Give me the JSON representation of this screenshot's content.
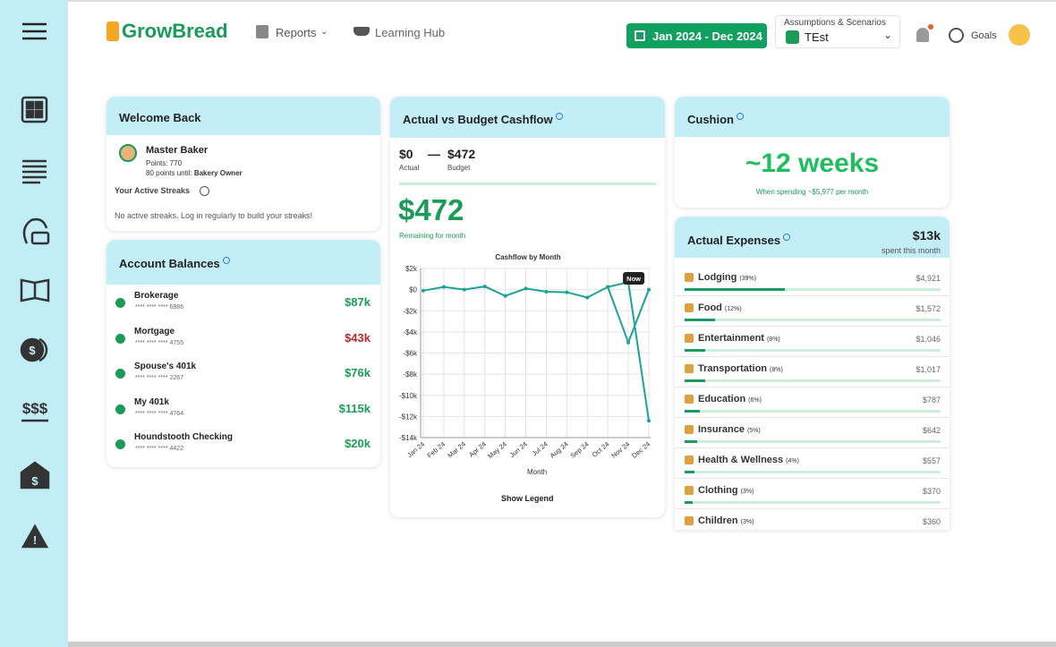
{
  "header": {
    "logo": "GrowBread",
    "nav": [
      "Reports",
      "Learning Hub"
    ],
    "date_range": "Jan 2024 - Dec 2024",
    "scenario_label": "Assumptions & Scenarios",
    "scenario": "TEst",
    "goals": "Goals"
  },
  "welcome": {
    "title": "Welcome Back",
    "name": "Master Baker",
    "points": "Points: 770",
    "next_level": "80 points until:",
    "next_level_name": "Bakery Owner",
    "streaks_title": "Your Active Streaks",
    "streaks_empty": "No active streaks. Log in regularly to build your streaks!"
  },
  "balances": {
    "title": "Account Balances",
    "accounts": [
      {
        "name": "Brokerage",
        "number": "**** **** **** 6886",
        "amount": "$87k",
        "color": "#1e9b55"
      },
      {
        "name": "Mortgage",
        "number": "**** **** **** 4755",
        "amount": "$43k",
        "color": "#b8292f"
      },
      {
        "name": "Spouse's 401k",
        "number": "**** **** **** 2267",
        "amount": "$76k",
        "color": "#1e9b55"
      },
      {
        "name": "My 401k",
        "number": "**** **** **** 4764",
        "amount": "$115k",
        "color": "#1e9b55"
      },
      {
        "name": "Houndstooth Checking",
        "number": "**** **** **** 4422",
        "amount": "$20k",
        "color": "#1e9b55"
      }
    ]
  },
  "cashflow": {
    "title": "Actual vs Budget Cashflow",
    "actual": "$0",
    "actual_label": "Actual",
    "budget": "$472",
    "budget_label": "Budget",
    "remaining": "$472",
    "remaining_label": "Remaining for month",
    "legend_toggle": "Show Legend",
    "chart": {
      "type": "line",
      "title": "Cashflow by Month",
      "x_label": "Month",
      "categories": [
        "Jan 24",
        "Feb 24",
        "Mar 24",
        "Apr 24",
        "May 24",
        "Jun 24",
        "Jul 24",
        "Aug 24",
        "Sep 24",
        "Oct 24",
        "Nov 24",
        "Dec 24"
      ],
      "series": [
        {
          "color": "#1ba39a",
          "values": [
            -100,
            250,
            0,
            300,
            -600,
            100,
            -200,
            -250,
            -750,
            250,
            700,
            -12400
          ]
        },
        {
          "color": "#1ba39a",
          "values": [
            null,
            null,
            null,
            null,
            null,
            null,
            null,
            null,
            null,
            250,
            -5000,
            0
          ]
        }
      ],
      "ylim": [
        -14000,
        2000
      ],
      "yticks": [
        {
          "value": 2000,
          "label": "$2k"
        },
        {
          "value": 0,
          "label": "$0"
        },
        {
          "value": -2000,
          "label": "-$2k"
        },
        {
          "value": -4000,
          "label": "-$4k"
        },
        {
          "value": -6000,
          "label": "-$6k"
        },
        {
          "value": -8000,
          "label": "-$8k"
        },
        {
          "value": -10000,
          "label": "-$10k"
        },
        {
          "value": -12000,
          "label": "-$12k"
        },
        {
          "value": -14000,
          "label": "-$14k"
        }
      ],
      "grid": true,
      "annotation": {
        "text": "Now",
        "x": "Nov 24"
      }
    }
  },
  "cushion": {
    "title": "Cushion",
    "value": "~12 weeks",
    "note": "When spending ~$5,977 per month"
  },
  "expenses": {
    "title": "Actual Expenses",
    "total": "$13k",
    "total_label": "spent this month",
    "items": [
      {
        "name": "Lodging",
        "percent": 39,
        "percent_label": "(39%)",
        "amount": "$4,921"
      },
      {
        "name": "Food",
        "percent": 12,
        "percent_label": "(12%)",
        "amount": "$1,572"
      },
      {
        "name": "Entertainment",
        "percent": 8,
        "percent_label": "(8%)",
        "amount": "$1,046"
      },
      {
        "name": "Transportation",
        "percent": 8,
        "percent_label": "(8%)",
        "amount": "$1,017"
      },
      {
        "name": "Education",
        "percent": 6,
        "percent_label": "(6%)",
        "amount": "$787"
      },
      {
        "name": "Insurance",
        "percent": 5,
        "percent_label": "(5%)",
        "amount": "$642"
      },
      {
        "name": "Health & Wellness",
        "percent": 4,
        "percent_label": "(4%)",
        "amount": "$557"
      },
      {
        "name": "Clothing",
        "percent": 3,
        "percent_label": "(3%)",
        "amount": "$370"
      },
      {
        "name": "Children",
        "percent": 3,
        "percent_label": "(3%)",
        "amount": "$360"
      }
    ]
  }
}
